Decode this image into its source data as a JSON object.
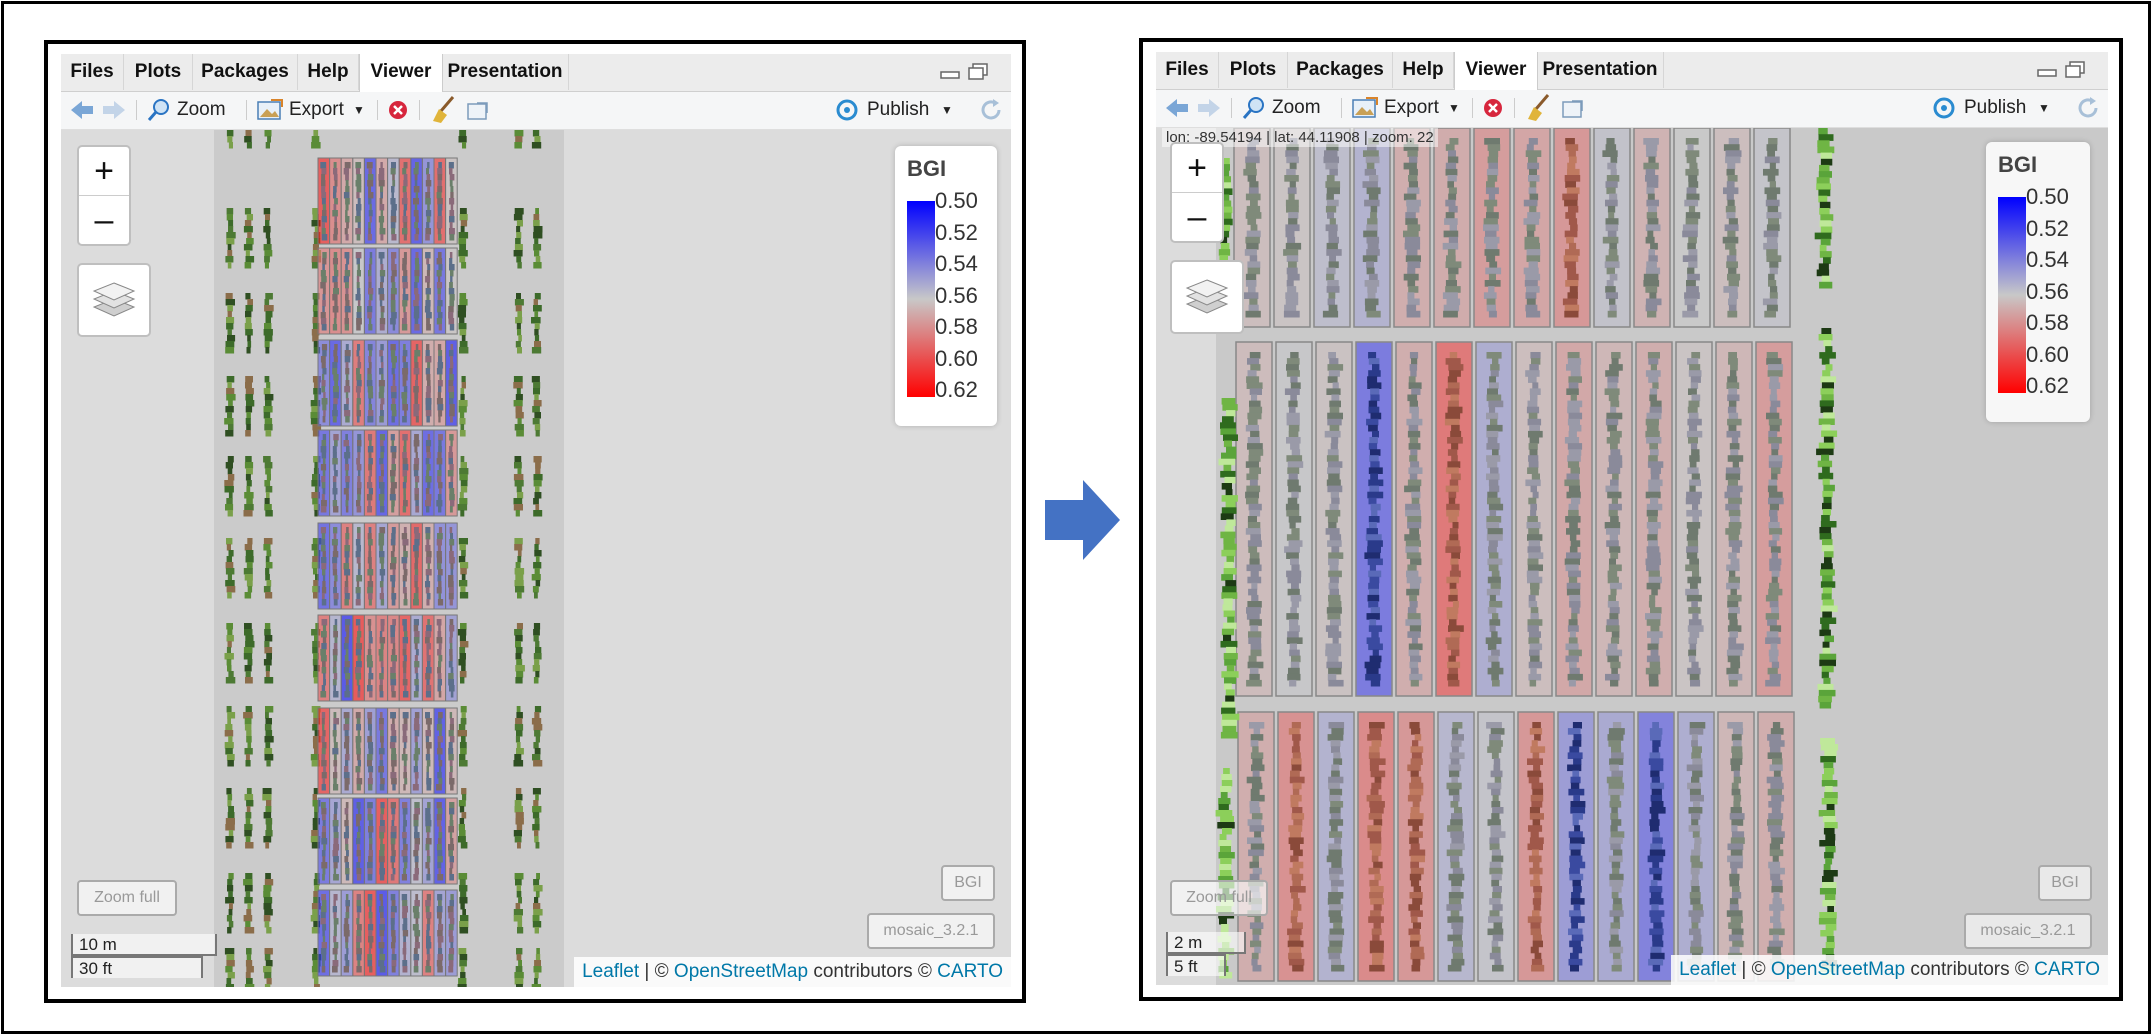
{
  "tabs": [
    "Files",
    "Plots",
    "Packages",
    "Help",
    "Viewer",
    "Presentation"
  ],
  "active_tab": "Viewer",
  "toolbar": {
    "zoom_label": "Zoom",
    "export_label": "Export",
    "publish_label": "Publish"
  },
  "map": {
    "zoom_in": "+",
    "zoom_out": "–",
    "legend_title": "BGI",
    "legend_ticks": [
      "0.50",
      "0.52",
      "0.54",
      "0.56",
      "0.58",
      "0.60",
      "0.62"
    ],
    "zoom_full_label": "Zoom full",
    "layer_bgi_label": "BGI",
    "layer_mosaic_label": "mosaic_3.2.1",
    "attribution": {
      "leaflet": "Leaflet",
      "sep1": " | © ",
      "osm": "OpenStreetMap",
      "mid": " contributors © ",
      "carto": "CARTO"
    }
  },
  "left": {
    "scale_metric": "10 m",
    "scale_imperial": "30 ft"
  },
  "right": {
    "scale_metric": "2 m",
    "scale_imperial": "5 ft",
    "coords": "lon: -89.54194 | lat: 44.11908 | zoom: 22"
  },
  "colors": {
    "arrow": "#4472c4",
    "index_low": "#0000ff",
    "index_mid": "#c8c8c8",
    "index_high": "#ff0000"
  }
}
